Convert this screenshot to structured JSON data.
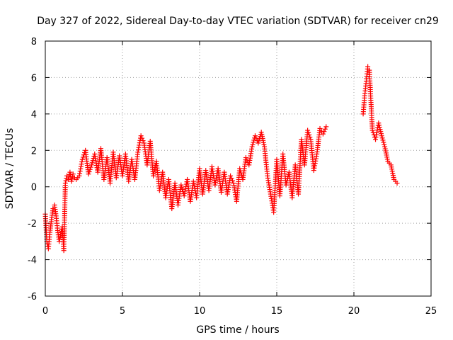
{
  "chart_data": {
    "type": "scatter",
    "title": "Day 327 of 2022, Sidereal Day-to-day VTEC variation (SDTVAR) for receiver cn29",
    "xlabel": "GPS time / hours",
    "ylabel": "SDTVAR / TECUs",
    "xlim": [
      0,
      25
    ],
    "ylim": [
      -6,
      8
    ],
    "x_ticks": [
      0,
      5,
      10,
      15,
      20,
      25
    ],
    "y_ticks": [
      -6,
      -4,
      -2,
      0,
      2,
      4,
      6,
      8
    ],
    "grid": true,
    "marker": "+",
    "colors": {
      "marker": "#ff0000",
      "grid": "#a0a0a0",
      "axis": "#000000"
    },
    "series": [
      {
        "name": "SDTVAR",
        "x": [
          0.0,
          0.1,
          0.2,
          0.3,
          0.4,
          0.5,
          0.6,
          0.7,
          0.8,
          0.9,
          1.0,
          1.1,
          1.2,
          1.3,
          1.4,
          1.5,
          1.6,
          1.7,
          1.8,
          1.9,
          2.0,
          2.1,
          2.2,
          2.4,
          2.6,
          2.8,
          3.0,
          3.2,
          3.4,
          3.6,
          3.8,
          4.0,
          4.2,
          4.4,
          4.6,
          4.8,
          5.0,
          5.2,
          5.4,
          5.6,
          5.8,
          6.0,
          6.2,
          6.4,
          6.6,
          6.8,
          7.0,
          7.2,
          7.4,
          7.6,
          7.8,
          8.0,
          8.2,
          8.4,
          8.6,
          8.8,
          9.0,
          9.2,
          9.4,
          9.6,
          9.8,
          10.0,
          10.2,
          10.4,
          10.6,
          10.8,
          11.0,
          11.2,
          11.4,
          11.6,
          11.8,
          12.0,
          12.2,
          12.4,
          12.6,
          12.8,
          13.0,
          13.2,
          13.4,
          13.6,
          13.8,
          14.0,
          14.2,
          14.4,
          14.6,
          14.8,
          15.0,
          15.2,
          15.4,
          15.6,
          15.8,
          16.0,
          16.2,
          16.4,
          16.6,
          16.8,
          17.0,
          17.2,
          17.4,
          17.6,
          17.8,
          18.0,
          18.2,
          20.6,
          20.7,
          20.8,
          20.9,
          21.0,
          21.2,
          21.4,
          21.6,
          21.8,
          22.0,
          22.2,
          22.4,
          22.6,
          22.8
        ],
        "y": [
          -1.5,
          -3.0,
          -3.4,
          -2.5,
          -1.8,
          -1.2,
          -1.0,
          -1.6,
          -2.4,
          -3.0,
          -2.6,
          -2.2,
          -3.5,
          0.2,
          0.6,
          0.4,
          0.8,
          0.3,
          0.7,
          0.5,
          0.4,
          0.5,
          0.6,
          1.5,
          2.0,
          0.7,
          1.2,
          1.8,
          0.8,
          2.1,
          0.4,
          1.6,
          0.2,
          1.9,
          0.5,
          1.7,
          0.6,
          1.8,
          0.3,
          1.5,
          0.4,
          1.9,
          2.8,
          2.4,
          1.2,
          2.5,
          0.6,
          1.4,
          -0.2,
          0.8,
          -0.6,
          0.4,
          -1.2,
          0.2,
          -1.0,
          0.1,
          -0.5,
          0.4,
          -0.8,
          0.3,
          -0.6,
          1.0,
          -0.4,
          0.9,
          -0.2,
          1.1,
          0.1,
          1.0,
          -0.3,
          0.8,
          -0.4,
          0.6,
          0.2,
          -0.8,
          1.0,
          0.4,
          1.6,
          1.2,
          2.2,
          2.8,
          2.4,
          3.0,
          2.2,
          0.6,
          -0.4,
          -1.4,
          1.5,
          -0.5,
          1.8,
          0.1,
          0.8,
          -0.6,
          1.2,
          -0.4,
          2.6,
          1.2,
          3.1,
          2.6,
          0.9,
          1.8,
          3.2,
          2.9,
          3.3,
          4.0,
          5.0,
          5.8,
          6.6,
          6.4,
          3.1,
          2.6,
          3.5,
          2.8,
          2.2,
          1.4,
          1.2,
          0.4,
          0.2
        ]
      }
    ]
  }
}
